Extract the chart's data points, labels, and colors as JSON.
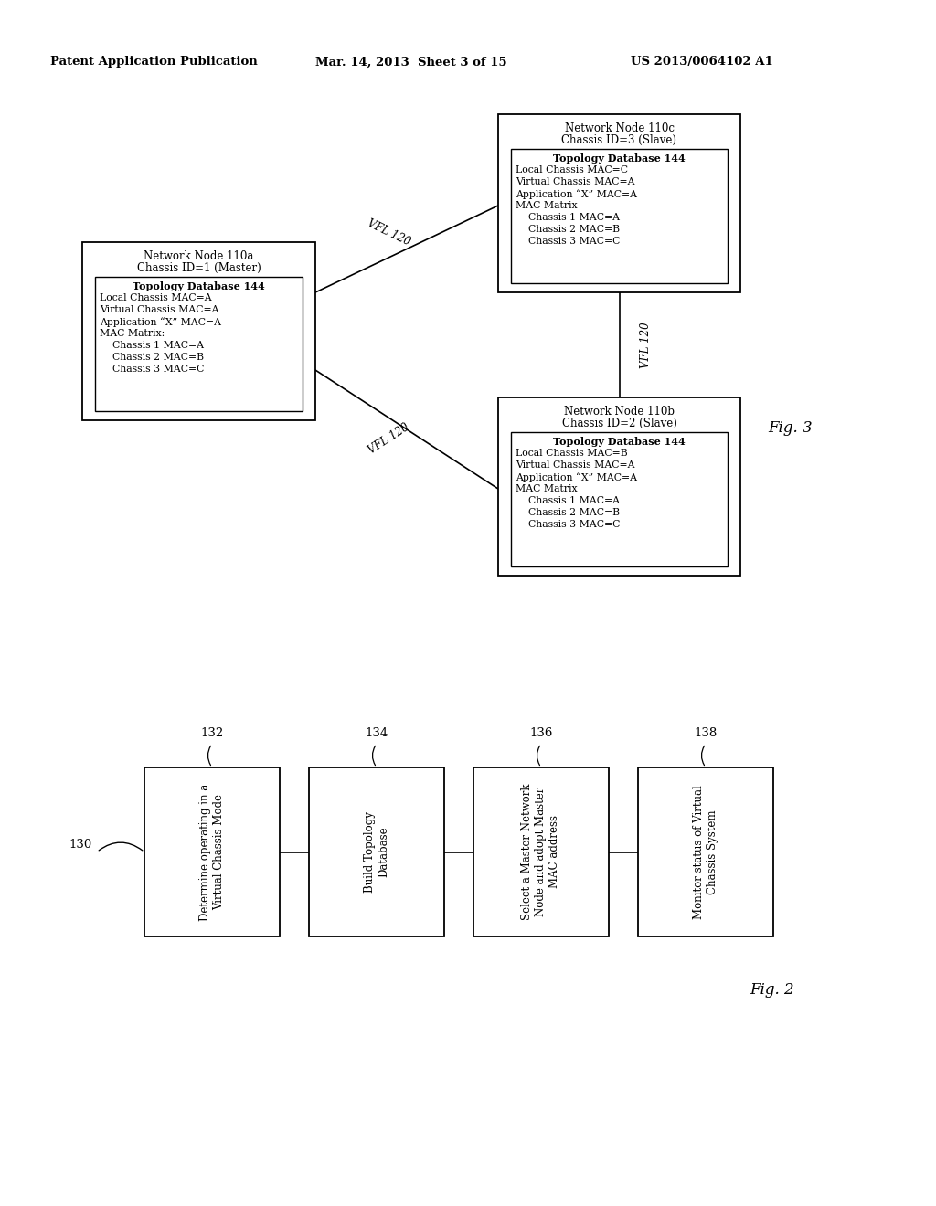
{
  "header_left": "Patent Application Publication",
  "header_mid": "Mar. 14, 2013  Sheet 3 of 15",
  "header_right": "US 2013/0064102 A1",
  "fig3_label": "Fig. 3",
  "fig2_label": "Fig. 2",
  "node_a": {
    "title1": "Network Node 110a",
    "title2": "Chassis ID=1 (Master)",
    "inner_title": "Topology Database 144",
    "lines": [
      "Local Chassis MAC=A",
      "Virtual Chassis MAC=A",
      "Application “X” MAC=A",
      "MAC Matrix:",
      "    Chassis 1 MAC=A",
      "    Chassis 2 MAC=B",
      "    Chassis 3 MAC=C"
    ]
  },
  "node_b": {
    "title1": "Network Node 110b",
    "title2": "Chassis ID=2 (Slave)",
    "inner_title": "Topology Database 144",
    "lines": [
      "Local Chassis MAC=B",
      "Virtual Chassis MAC=A",
      "Application “X” MAC=A",
      "MAC Matrix",
      "    Chassis 1 MAC=A",
      "    Chassis 2 MAC=B",
      "    Chassis 3 MAC=C"
    ]
  },
  "node_c": {
    "title1": "Network Node 110c",
    "title2": "Chassis ID=3 (Slave)",
    "inner_title": "Topology Database 144",
    "lines": [
      "Local Chassis MAC=C",
      "Virtual Chassis MAC=A",
      "Application “X” MAC=A",
      "MAC Matrix",
      "    Chassis 1 MAC=A",
      "    Chassis 2 MAC=B",
      "    Chassis 3 MAC=C"
    ]
  },
  "flow_label": "130",
  "flow_steps": [
    {
      "label": "132",
      "text": "Determine operating in a\nVirtual Chassis Mode"
    },
    {
      "label": "134",
      "text": "Build Topology\nDatabase"
    },
    {
      "label": "136",
      "text": "Select a Master Network\nNode and adopt Master\nMAC address"
    },
    {
      "label": "138",
      "text": "Monitor status of Virtual\nChassis System"
    }
  ]
}
